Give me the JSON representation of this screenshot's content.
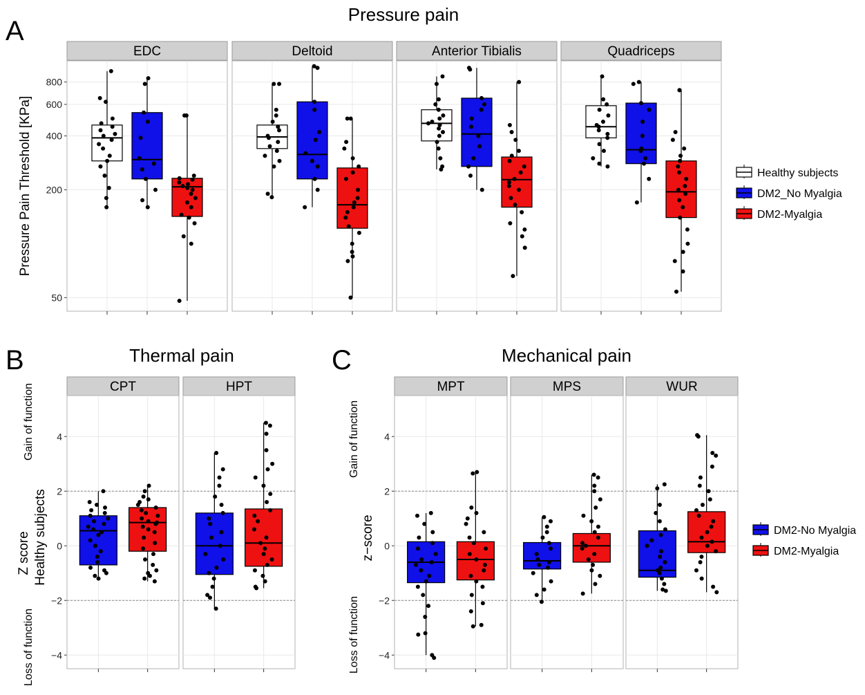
{
  "figure": {
    "panel_labels": {
      "A": "A",
      "B": "B",
      "C": "C"
    },
    "colors": {
      "healthy": "#ffffff",
      "no_myalgia": "#1010e8",
      "myalgia": "#ee1111",
      "strip": "#d0d0d0",
      "grid": "#e8e8e8",
      "refline": "#888888"
    }
  },
  "chart_data": [
    {
      "id": "A",
      "type": "box",
      "title": "Pressure pain",
      "ylabel": "Pressure Pain Threshold [KPa]",
      "yscale": "log",
      "ylim": [
        42,
        1050
      ],
      "yticks": [
        50,
        200,
        400,
        600,
        800
      ],
      "ytick_labels": [
        "50",
        "200",
        "400",
        "600",
        "800"
      ],
      "facets": [
        "EDC",
        "Deltoid",
        "Anterior Tibialis",
        "Quadriceps"
      ],
      "groups": [
        "Healthy subjects",
        "DM2_No Myalgia",
        "DM2-Myalgia"
      ],
      "legend": {
        "position": "right",
        "entries": [
          "Healthy subjects",
          "DM2_No Myalgia",
          "DM2-Myalgia"
        ]
      },
      "boxes": [
        [
          {
            "q1": 290,
            "median": 390,
            "q3": 460,
            "whisker_low": 160,
            "whisker_high": 920,
            "points": [
              920,
              650,
              620,
              500,
              470,
              450,
              430,
              410,
              400,
              380,
              360,
              340,
              310,
              290,
              270,
              240,
              205,
              180,
              160
            ]
          },
          {
            "q1": 230,
            "median": 295,
            "q3": 540,
            "whisker_low": 160,
            "whisker_high": 840,
            "points": [
              840,
              780,
              540,
              480,
              390,
              300,
              280,
              260,
              230,
              200,
              175,
              160
            ]
          },
          {
            "q1": 142,
            "median": 208,
            "q3": 232,
            "whisker_low": 48,
            "whisker_high": 520,
            "points": [
              520,
              520,
              240,
              232,
              228,
              220,
              215,
              210,
              205,
              200,
              190,
              180,
              170,
              160,
              145,
              140,
              130,
              110,
              100,
              48
            ]
          }
        ],
        [
          {
            "q1": 340,
            "median": 395,
            "q3": 460,
            "whisker_low": 182,
            "whisker_high": 780,
            "points": [
              780,
              780,
              560,
              520,
              480,
              450,
              430,
              400,
              390,
              370,
              350,
              330,
              310,
              290,
              270,
              190,
              182
            ]
          },
          {
            "q1": 230,
            "median": 315,
            "q3": 620,
            "whisker_low": 160,
            "whisker_high": 980,
            "points": [
              980,
              960,
              620,
              560,
              420,
              380,
              320,
              290,
              270,
              230,
              200,
              160
            ]
          },
          {
            "q1": 122,
            "median": 165,
            "q3": 265,
            "whisker_low": 50,
            "whisker_high": 500,
            "points": [
              500,
              500,
              370,
              340,
              300,
              270,
              250,
              230,
              200,
              180,
              170,
              160,
              150,
              140,
              125,
              115,
              100,
              90,
              85,
              80,
              50
            ]
          }
        ],
        [
          {
            "q1": 375,
            "median": 470,
            "q3": 560,
            "whisker_low": 260,
            "whisker_high": 860,
            "points": [
              860,
              780,
              640,
              600,
              560,
              520,
              500,
              480,
              470,
              460,
              440,
              420,
              400,
              370,
              340,
              300,
              270,
              260
            ]
          },
          {
            "q1": 270,
            "median": 410,
            "q3": 650,
            "whisker_low": 200,
            "whisker_high": 960,
            "points": [
              960,
              940,
              650,
              600,
              560,
              500,
              450,
              400,
              350,
              300,
              270,
              240,
              200
            ]
          },
          {
            "q1": 160,
            "median": 228,
            "q3": 305,
            "whisker_low": 66,
            "whisker_high": 800,
            "points": [
              800,
              460,
              420,
              380,
              330,
              310,
              290,
              270,
              250,
              230,
              220,
              210,
              200,
              180,
              165,
              150,
              130,
              120,
              110,
              95,
              66
            ]
          }
        ],
        [
          {
            "q1": 390,
            "median": 450,
            "q3": 590,
            "whisker_low": 270,
            "whisker_high": 860,
            "points": [
              860,
              640,
              600,
              560,
              520,
              480,
              460,
              450,
              430,
              410,
              390,
              360,
              330,
              300,
              280,
              270
            ]
          },
          {
            "q1": 280,
            "median": 335,
            "q3": 610,
            "whisker_low": 170,
            "whisker_high": 800,
            "points": [
              800,
              780,
              610,
              560,
              480,
              400,
              340,
              330,
              300,
              280,
              230,
              170
            ]
          },
          {
            "q1": 140,
            "median": 195,
            "q3": 290,
            "whisker_low": 54,
            "whisker_high": 720,
            "points": [
              720,
              720,
              420,
              380,
              340,
              310,
              290,
              270,
              250,
              230,
              210,
              200,
              190,
              175,
              160,
              140,
              120,
              100,
              90,
              80,
              70,
              54
            ]
          }
        ]
      ]
    },
    {
      "id": "B",
      "type": "box",
      "title": "Thermal pain",
      "ylabel": "Z score",
      "ylabel2": "Healthy subjects",
      "side_labels": {
        "top": "Gain of function",
        "bottom": "Loss of function"
      },
      "ylim": [
        -4.5,
        5.5
      ],
      "yticks": [
        -4,
        -2,
        0,
        2,
        4
      ],
      "ytick_labels": [
        "−4",
        "−2",
        "0",
        "2",
        "4"
      ],
      "reference_lines": [
        2,
        -2
      ],
      "facets": [
        "CPT",
        "HPT"
      ],
      "groups": [
        "DM2-No Myalgia",
        "DM2-Myalgia"
      ],
      "boxes": [
        [
          {
            "q1": -0.7,
            "median": 0.55,
            "q3": 1.1,
            "whisker_low": -1.2,
            "whisker_high": 2.0,
            "points": [
              2.0,
              1.6,
              1.5,
              1.4,
              1.3,
              1.2,
              1.1,
              1.0,
              0.9,
              0.8,
              0.7,
              0.6,
              0.5,
              0.4,
              0.2,
              0.0,
              -0.2,
              -0.4,
              -0.6,
              -0.8,
              -0.9,
              -1.0,
              -1.1,
              -1.2
            ]
          },
          {
            "q1": -0.2,
            "median": 0.85,
            "q3": 1.4,
            "whisker_low": -1.3,
            "whisker_high": 2.2,
            "points": [
              2.2,
              2.0,
              1.8,
              1.7,
              1.6,
              1.5,
              1.4,
              1.3,
              1.2,
              1.1,
              1.0,
              0.9,
              0.85,
              0.8,
              0.7,
              0.6,
              0.5,
              0.3,
              0.1,
              -0.1,
              -0.3,
              -0.5,
              -0.7,
              -0.9,
              -1.0,
              -1.1,
              -1.2,
              -1.3
            ]
          }
        ],
        [
          {
            "q1": -1.05,
            "median": 0.0,
            "q3": 1.2,
            "whisker_low": -2.3,
            "whisker_high": 3.4,
            "points": [
              3.4,
              2.8,
              2.5,
              2.2,
              1.8,
              1.5,
              1.2,
              1.0,
              0.8,
              0.5,
              0.3,
              0.0,
              -0.3,
              -0.5,
              -0.8,
              -1.0,
              -1.2,
              -1.5,
              -1.8,
              -1.9,
              -2.3
            ]
          },
          {
            "q1": -0.75,
            "median": 0.1,
            "q3": 1.35,
            "whisker_low": -1.55,
            "whisker_high": 4.5,
            "points": [
              4.5,
              4.4,
              4.1,
              3.5,
              3.0,
              2.8,
              2.5,
              2.2,
              1.9,
              1.6,
              1.3,
              1.1,
              0.9,
              0.6,
              0.3,
              0.1,
              -0.1,
              -0.3,
              -0.5,
              -0.7,
              -0.9,
              -1.1,
              -1.3,
              -1.5,
              -1.55
            ]
          }
        ]
      ]
    },
    {
      "id": "C",
      "type": "box",
      "title": "Mechanical pain",
      "ylabel": "z−score",
      "side_labels": {
        "top": "Gain of function",
        "bottom": "Loss of function"
      },
      "ylim": [
        -4.5,
        5.5
      ],
      "yticks": [
        -4,
        -2,
        0,
        2,
        4
      ],
      "ytick_labels": [
        "−4",
        "−2",
        "0",
        "2",
        "4"
      ],
      "reference_lines": [
        2,
        -2
      ],
      "facets": [
        "MPT",
        "MPS",
        "WUR"
      ],
      "groups": [
        "DM2-No Myalgia",
        "DM2-Myalgia"
      ],
      "legend": {
        "position": "right",
        "entries": [
          "DM2-No Myalgia",
          "DM2-Myalgia"
        ]
      },
      "boxes": [
        [
          {
            "q1": -1.35,
            "median": -0.6,
            "q3": 0.15,
            "whisker_low": -4.0,
            "whisker_high": 1.2,
            "points": [
              1.2,
              1.1,
              0.8,
              0.5,
              0.3,
              0.1,
              -0.1,
              -0.3,
              -0.5,
              -0.6,
              -0.7,
              -0.9,
              -1.1,
              -1.3,
              -1.5,
              -1.8,
              -2.2,
              -2.6,
              -3.2,
              -3.25,
              -4.0,
              -4.1
            ]
          },
          {
            "q1": -1.25,
            "median": -0.5,
            "q3": 0.15,
            "whisker_low": -2.95,
            "whisker_high": 2.7,
            "points": [
              2.7,
              2.65,
              1.4,
              1.2,
              1.0,
              0.8,
              0.5,
              0.3,
              0.1,
              -0.1,
              -0.3,
              -0.5,
              -0.7,
              -0.9,
              -1.1,
              -1.3,
              -1.5,
              -1.8,
              -2.1,
              -2.4,
              -2.9,
              -2.95
            ]
          }
        ],
        [
          {
            "q1": -0.85,
            "median": -0.55,
            "q3": 0.12,
            "whisker_low": -2.05,
            "whisker_high": 1.05,
            "points": [
              1.05,
              0.9,
              0.7,
              0.5,
              0.3,
              0.1,
              -0.1,
              -0.3,
              -0.5,
              -0.6,
              -0.7,
              -0.8,
              -1.0,
              -1.3,
              -1.6,
              -1.8,
              -2.05
            ]
          },
          {
            "q1": -0.6,
            "median": 0.0,
            "q3": 0.45,
            "whisker_low": -1.75,
            "whisker_high": 2.6,
            "points": [
              2.6,
              2.5,
              2.2,
              2.0,
              1.7,
              1.4,
              1.1,
              0.9,
              0.7,
              0.5,
              0.3,
              0.1,
              0.0,
              -0.1,
              -0.3,
              -0.5,
              -0.7,
              -0.9,
              -1.1,
              -1.4,
              -1.75
            ]
          }
        ],
        [
          {
            "q1": -1.15,
            "median": -0.9,
            "q3": 0.55,
            "whisker_low": -1.65,
            "whisker_high": 2.25,
            "points": [
              2.25,
              2.1,
              1.5,
              1.2,
              0.9,
              0.6,
              0.4,
              0.2,
              0.0,
              -0.2,
              -0.4,
              -0.6,
              -0.8,
              -0.9,
              -1.0,
              -1.2,
              -1.4,
              -1.6,
              -1.65
            ]
          },
          {
            "q1": -0.25,
            "median": 0.15,
            "q3": 1.25,
            "whisker_low": -1.7,
            "whisker_high": 4.05,
            "points": [
              4.05,
              4.0,
              3.4,
              3.3,
              2.9,
              2.5,
              2.2,
              2.0,
              1.7,
              1.5,
              1.3,
              1.1,
              0.9,
              0.7,
              0.5,
              0.3,
              0.15,
              0.0,
              -0.2,
              -0.4,
              -0.6,
              -0.9,
              -1.2,
              -1.5,
              -1.7
            ]
          }
        ]
      ]
    }
  ]
}
